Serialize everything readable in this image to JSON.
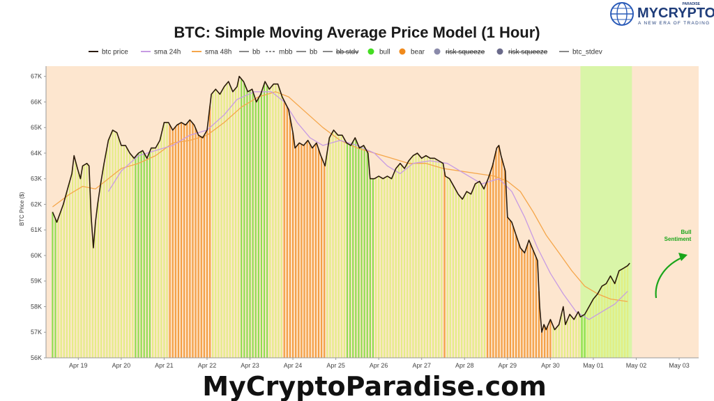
{
  "brand": {
    "name": "MYCRYPTO",
    "tagline": "A NEW ERA OF TRADING",
    "top_word": "PARADISE",
    "watermark": "MyCryptoParadise.com"
  },
  "chart_data": {
    "type": "line",
    "title": "BTC: Simple Moving Average Price Model (1 Hour)",
    "ylabel": "BTC Price ($)",
    "xlabel": "",
    "ylim": [
      56000,
      67400
    ],
    "xlim": [
      0,
      15.2
    ],
    "x_ticks": [
      "Apr 19",
      "Apr 20",
      "Apr 21",
      "Apr 22",
      "Apr 23",
      "Apr 24",
      "Apr 25",
      "Apr 26",
      "Apr 27",
      "Apr 28",
      "Apr 29",
      "Apr 30",
      "May 01",
      "May 02",
      "May 03"
    ],
    "y_ticks": [
      56000,
      57000,
      58000,
      59000,
      60000,
      61000,
      62000,
      63000,
      64000,
      65000,
      66000,
      67000
    ],
    "y_tick_labels": [
      "56K",
      "57K",
      "58K",
      "59K",
      "60K",
      "61K",
      "62K",
      "63K",
      "64K",
      "65K",
      "66K",
      "67K"
    ],
    "legend": [
      {
        "label": "btc price",
        "kind": "line",
        "color": "#2a1a0a",
        "dash": false,
        "strike": false
      },
      {
        "label": "sma 24h",
        "kind": "line",
        "color": "#c79be3",
        "dash": false,
        "strike": false
      },
      {
        "label": "sma 48h",
        "kind": "line",
        "color": "#f5a64a",
        "dash": false,
        "strike": false
      },
      {
        "label": "bb",
        "kind": "line",
        "color": "#888888",
        "dash": false,
        "strike": false
      },
      {
        "label": "mbb",
        "kind": "line",
        "color": "#888888",
        "dash": true,
        "strike": false
      },
      {
        "label": "bb",
        "kind": "line",
        "color": "#888888",
        "dash": false,
        "strike": false
      },
      {
        "label": "bb stdv",
        "kind": "line",
        "color": "#888888",
        "dash": false,
        "strike": true
      },
      {
        "label": "bull",
        "kind": "dot",
        "color": "#44dd22",
        "dash": false,
        "strike": false
      },
      {
        "label": "bear",
        "kind": "dot",
        "color": "#f08a1c",
        "dash": false,
        "strike": false
      },
      {
        "label": "risk squeeze",
        "kind": "dot",
        "color": "#8a8aaa",
        "dash": false,
        "strike": true
      },
      {
        "label": "risk squeeze",
        "kind": "dot",
        "color": "#6a6a8a",
        "dash": false,
        "strike": true
      },
      {
        "label": "btc_stdev",
        "kind": "line",
        "color": "#888888",
        "dash": false,
        "strike": false
      }
    ],
    "series": [
      {
        "name": "btc price",
        "color": "#2a1a0a",
        "points": [
          [
            -0.4,
            61.7
          ],
          [
            -0.3,
            61.3
          ],
          [
            -0.15,
            62.0
          ],
          [
            -0.05,
            62.6
          ],
          [
            0.05,
            63.2
          ],
          [
            0.1,
            63.9
          ],
          [
            0.18,
            63.4
          ],
          [
            0.25,
            63.0
          ],
          [
            0.3,
            63.5
          ],
          [
            0.4,
            63.6
          ],
          [
            0.45,
            63.5
          ],
          [
            0.5,
            61.5
          ],
          [
            0.55,
            60.3
          ],
          [
            0.6,
            61.3
          ],
          [
            0.65,
            62.0
          ],
          [
            0.72,
            62.8
          ],
          [
            0.8,
            63.6
          ],
          [
            0.9,
            64.5
          ],
          [
            1.0,
            64.9
          ],
          [
            1.1,
            64.8
          ],
          [
            1.2,
            64.3
          ],
          [
            1.3,
            64.3
          ],
          [
            1.4,
            64.0
          ],
          [
            1.5,
            63.8
          ],
          [
            1.6,
            64.0
          ],
          [
            1.7,
            64.1
          ],
          [
            1.8,
            63.8
          ],
          [
            1.9,
            64.2
          ],
          [
            2.0,
            64.2
          ],
          [
            2.1,
            64.5
          ],
          [
            2.2,
            65.2
          ],
          [
            2.3,
            65.2
          ],
          [
            2.4,
            64.9
          ],
          [
            2.5,
            65.1
          ],
          [
            2.6,
            65.2
          ],
          [
            2.7,
            65.1
          ],
          [
            2.8,
            65.3
          ],
          [
            2.9,
            65.1
          ],
          [
            3.0,
            64.7
          ],
          [
            3.1,
            64.6
          ],
          [
            3.2,
            64.9
          ],
          [
            3.3,
            66.3
          ],
          [
            3.4,
            66.5
          ],
          [
            3.5,
            66.3
          ],
          [
            3.6,
            66.6
          ],
          [
            3.7,
            66.8
          ],
          [
            3.8,
            66.4
          ],
          [
            3.9,
            66.6
          ],
          [
            3.95,
            67.0
          ],
          [
            4.05,
            66.8
          ],
          [
            4.15,
            66.4
          ],
          [
            4.25,
            66.5
          ],
          [
            4.35,
            66.0
          ],
          [
            4.45,
            66.3
          ],
          [
            4.55,
            66.8
          ],
          [
            4.65,
            66.5
          ],
          [
            4.75,
            66.7
          ],
          [
            4.85,
            66.7
          ],
          [
            4.95,
            66.2
          ],
          [
            5.1,
            65.7
          ],
          [
            5.2,
            64.8
          ],
          [
            5.25,
            64.2
          ],
          [
            5.35,
            64.4
          ],
          [
            5.45,
            64.3
          ],
          [
            5.55,
            64.5
          ],
          [
            5.65,
            64.2
          ],
          [
            5.75,
            64.4
          ],
          [
            5.85,
            63.9
          ],
          [
            5.95,
            63.5
          ],
          [
            6.05,
            64.6
          ],
          [
            6.15,
            64.9
          ],
          [
            6.25,
            64.7
          ],
          [
            6.35,
            64.7
          ],
          [
            6.45,
            64.4
          ],
          [
            6.55,
            64.3
          ],
          [
            6.65,
            64.6
          ],
          [
            6.75,
            64.2
          ],
          [
            6.85,
            64.3
          ],
          [
            6.95,
            64.0
          ],
          [
            7.0,
            63.0
          ],
          [
            7.1,
            63.0
          ],
          [
            7.2,
            63.1
          ],
          [
            7.3,
            63.0
          ],
          [
            7.4,
            63.1
          ],
          [
            7.5,
            63.0
          ],
          [
            7.6,
            63.4
          ],
          [
            7.7,
            63.6
          ],
          [
            7.8,
            63.4
          ],
          [
            7.9,
            63.7
          ],
          [
            8.0,
            63.9
          ],
          [
            8.1,
            64.0
          ],
          [
            8.2,
            63.8
          ],
          [
            8.3,
            63.9
          ],
          [
            8.4,
            63.8
          ],
          [
            8.5,
            63.8
          ],
          [
            8.6,
            63.7
          ],
          [
            8.7,
            63.6
          ],
          [
            8.75,
            63.1
          ],
          [
            8.85,
            63.0
          ],
          [
            8.95,
            62.7
          ],
          [
            9.05,
            62.4
          ],
          [
            9.15,
            62.2
          ],
          [
            9.25,
            62.5
          ],
          [
            9.35,
            62.4
          ],
          [
            9.45,
            62.8
          ],
          [
            9.55,
            62.9
          ],
          [
            9.65,
            62.6
          ],
          [
            9.75,
            63.0
          ],
          [
            9.85,
            63.5
          ],
          [
            9.95,
            64.2
          ],
          [
            10.0,
            64.3
          ],
          [
            10.05,
            63.9
          ],
          [
            10.15,
            63.3
          ],
          [
            10.2,
            61.5
          ],
          [
            10.3,
            61.3
          ],
          [
            10.4,
            60.8
          ],
          [
            10.5,
            60.3
          ],
          [
            10.6,
            60.1
          ],
          [
            10.7,
            60.6
          ],
          [
            10.8,
            60.2
          ],
          [
            10.9,
            59.8
          ],
          [
            10.95,
            58.0
          ],
          [
            11.0,
            57.0
          ],
          [
            11.05,
            57.3
          ],
          [
            11.1,
            57.1
          ],
          [
            11.2,
            57.5
          ],
          [
            11.3,
            57.1
          ],
          [
            11.4,
            57.3
          ],
          [
            11.5,
            58.0
          ],
          [
            11.55,
            57.3
          ],
          [
            11.65,
            57.7
          ],
          [
            11.75,
            57.5
          ],
          [
            11.85,
            57.8
          ],
          [
            11.9,
            57.6
          ],
          [
            12.0,
            57.7
          ],
          [
            12.1,
            58.0
          ],
          [
            12.2,
            58.3
          ],
          [
            12.3,
            58.5
          ],
          [
            12.4,
            58.8
          ],
          [
            12.5,
            58.9
          ],
          [
            12.6,
            59.2
          ],
          [
            12.7,
            58.9
          ],
          [
            12.8,
            59.4
          ],
          [
            12.9,
            59.5
          ],
          [
            13.0,
            59.6
          ],
          [
            13.05,
            59.7
          ]
        ]
      },
      {
        "name": "sma 24h",
        "color": "#c79be3",
        "points": [
          [
            0.9,
            62.5
          ],
          [
            1.2,
            63.3
          ],
          [
            1.6,
            63.9
          ],
          [
            2.0,
            64.1
          ],
          [
            2.4,
            64.3
          ],
          [
            2.8,
            64.7
          ],
          [
            3.2,
            64.9
          ],
          [
            3.6,
            65.5
          ],
          [
            3.9,
            66.1
          ],
          [
            4.3,
            66.4
          ],
          [
            4.7,
            66.4
          ],
          [
            5.0,
            66.0
          ],
          [
            5.3,
            65.2
          ],
          [
            5.6,
            64.6
          ],
          [
            5.9,
            64.3
          ],
          [
            6.3,
            64.5
          ],
          [
            6.7,
            64.3
          ],
          [
            7.1,
            64.0
          ],
          [
            7.4,
            63.5
          ],
          [
            7.7,
            63.2
          ],
          [
            8.0,
            63.6
          ],
          [
            8.4,
            63.7
          ],
          [
            8.8,
            63.6
          ],
          [
            9.2,
            63.2
          ],
          [
            9.6,
            62.8
          ],
          [
            10.0,
            63.0
          ],
          [
            10.3,
            62.5
          ],
          [
            10.6,
            61.5
          ],
          [
            10.9,
            60.3
          ],
          [
            11.2,
            59.3
          ],
          [
            11.5,
            58.5
          ],
          [
            11.8,
            57.8
          ],
          [
            12.1,
            57.5
          ],
          [
            12.4,
            57.8
          ],
          [
            12.7,
            58.1
          ],
          [
            13.0,
            58.6
          ]
        ]
      },
      {
        "name": "sma 48h",
        "color": "#f5a64a",
        "points": [
          [
            -0.4,
            61.9
          ],
          [
            0.0,
            62.4
          ],
          [
            0.3,
            62.7
          ],
          [
            0.6,
            62.6
          ],
          [
            0.9,
            63.0
          ],
          [
            1.2,
            63.4
          ],
          [
            1.6,
            63.6
          ],
          [
            2.0,
            63.9
          ],
          [
            2.4,
            64.4
          ],
          [
            2.8,
            64.5
          ],
          [
            3.2,
            64.7
          ],
          [
            3.6,
            65.2
          ],
          [
            4.0,
            65.8
          ],
          [
            4.4,
            66.2
          ],
          [
            4.8,
            66.4
          ],
          [
            5.1,
            66.2
          ],
          [
            5.5,
            65.6
          ],
          [
            5.9,
            65.0
          ],
          [
            6.3,
            64.5
          ],
          [
            6.7,
            64.2
          ],
          [
            7.1,
            64.0
          ],
          [
            7.5,
            63.8
          ],
          [
            7.9,
            63.6
          ],
          [
            8.3,
            63.6
          ],
          [
            8.7,
            63.4
          ],
          [
            9.1,
            63.3
          ],
          [
            9.5,
            63.2
          ],
          [
            9.9,
            63.1
          ],
          [
            10.2,
            62.9
          ],
          [
            10.5,
            62.5
          ],
          [
            10.8,
            61.7
          ],
          [
            11.1,
            60.8
          ],
          [
            11.4,
            60.1
          ],
          [
            11.7,
            59.4
          ],
          [
            12.0,
            58.8
          ],
          [
            12.3,
            58.5
          ],
          [
            12.6,
            58.3
          ],
          [
            13.0,
            58.2
          ]
        ]
      }
    ],
    "regime_bands": [
      {
        "from": -0.4,
        "to": 0.9,
        "state": "bull"
      },
      {
        "from": 0.9,
        "to": 1.9,
        "state": "bull"
      },
      {
        "from": 1.9,
        "to": 3.3,
        "state": "bear"
      },
      {
        "from": 3.3,
        "to": 5.0,
        "state": "bull"
      },
      {
        "from": 5.0,
        "to": 5.95,
        "state": "bear"
      },
      {
        "from": 5.95,
        "to": 7.0,
        "state": "bull"
      },
      {
        "from": 7.0,
        "to": 8.7,
        "state": "bull"
      },
      {
        "from": 8.7,
        "to": 10.2,
        "state": "bear"
      },
      {
        "from": 10.2,
        "to": 11.9,
        "state": "bear"
      },
      {
        "from": 11.9,
        "to": 13.1,
        "state": "bull"
      }
    ],
    "bull_zone": {
      "from": 11.9,
      "to": 13.1
    },
    "annotation": {
      "line1": "Bull",
      "line2": "Sentiment"
    },
    "colors": {
      "plot_bg": "#fde6cf",
      "bull_bg": "#d9f5a8",
      "bull_bar": "#e2ee80",
      "bull_bar_strong": "#88dd44",
      "bear_bar": "#f39a3a",
      "annotation": "#1aa51a",
      "grid": "#f5d8bb"
    }
  }
}
